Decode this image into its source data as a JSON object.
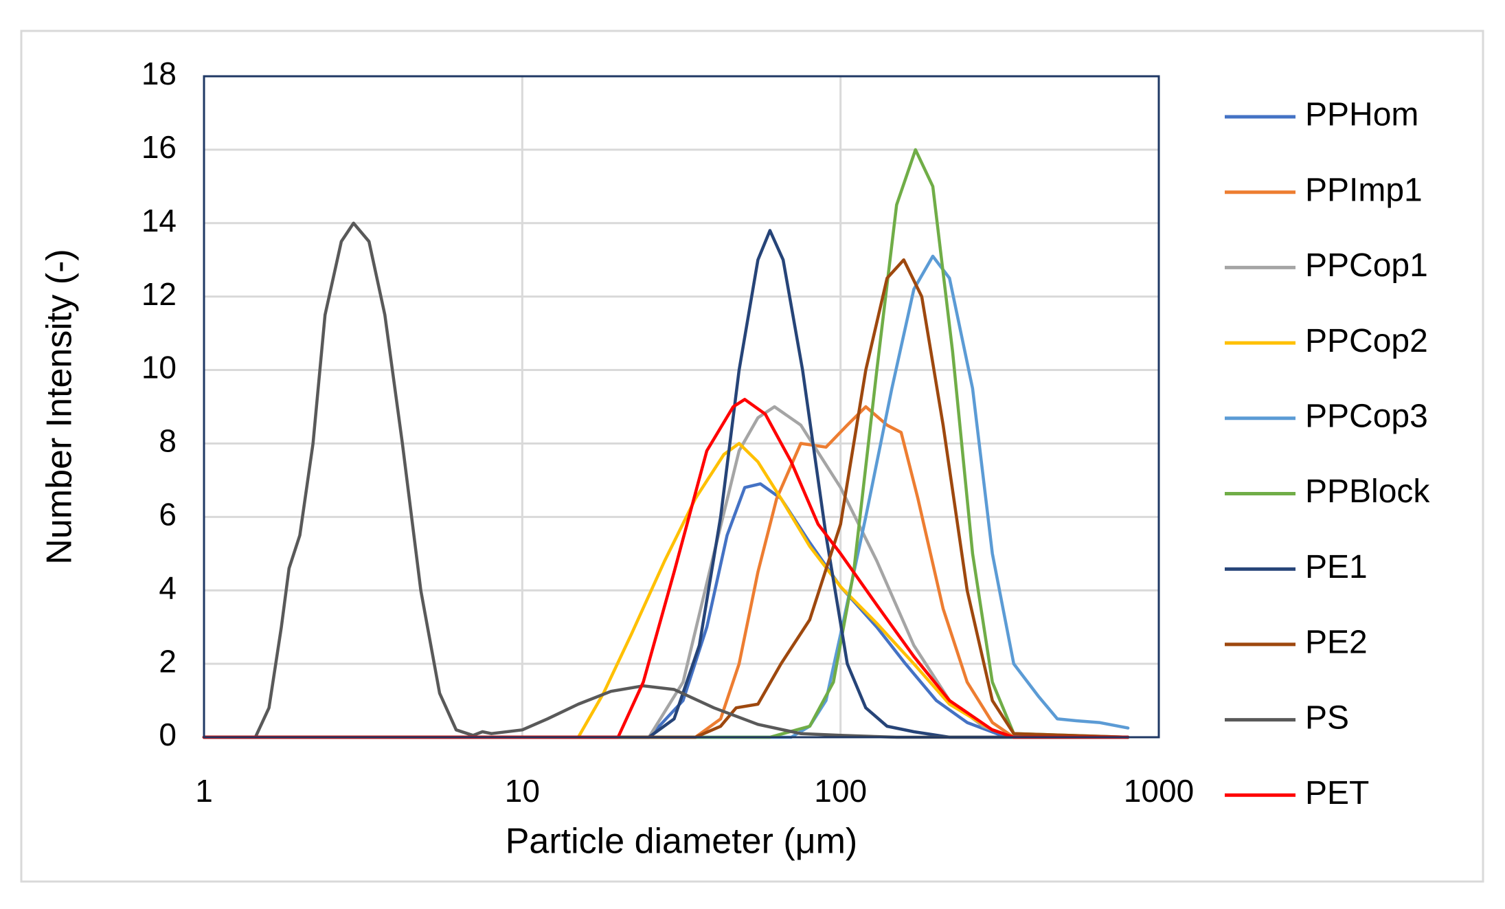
{
  "chart_data": {
    "type": "line",
    "x_label": "Particle diameter (μm)",
    "y_label": "Number Intensity (-)",
    "x_log": true,
    "xlim": [
      1,
      1000
    ],
    "xticks": [
      1,
      10,
      100,
      1000
    ],
    "ylim": [
      0,
      18
    ],
    "yticks": [
      0,
      2,
      4,
      6,
      8,
      10,
      12,
      14,
      16,
      18
    ],
    "grid": true,
    "legend": "right",
    "series": [
      {
        "name": "PPHom",
        "color": "#4472c4",
        "x": [
          1,
          25,
          32,
          38,
          44,
          50,
          56,
          65,
          80,
          100,
          130,
          160,
          200,
          250,
          320,
          400,
          800
        ],
        "values": [
          0,
          0,
          1,
          3,
          5.5,
          6.8,
          6.9,
          6.5,
          5.3,
          4.1,
          3,
          2,
          1,
          0.4,
          0.05,
          0,
          0
        ]
      },
      {
        "name": "PPImp1",
        "color": "#ed7d31",
        "x": [
          1,
          35,
          42,
          48,
          55,
          63,
          75,
          90,
          105,
          120,
          140,
          155,
          175,
          210,
          250,
          300,
          350,
          800
        ],
        "values": [
          0,
          0,
          0.5,
          2,
          4.5,
          6.5,
          8,
          7.9,
          8.5,
          9,
          8.5,
          8.3,
          6.5,
          3.5,
          1.5,
          0.4,
          0,
          0
        ]
      },
      {
        "name": "PPCop1",
        "color": "#a5a5a5",
        "x": [
          1,
          25,
          32,
          40,
          48,
          55,
          62,
          75,
          100,
          130,
          170,
          220,
          280,
          350,
          800
        ],
        "values": [
          0,
          0,
          1.5,
          5,
          7.8,
          8.7,
          9,
          8.5,
          6.8,
          4.8,
          2.5,
          1,
          0.3,
          0,
          0
        ]
      },
      {
        "name": "PPCop2",
        "color": "#ffc000",
        "x": [
          1,
          15,
          18,
          22,
          28,
          35,
          43,
          48,
          55,
          65,
          80,
          100,
          130,
          170,
          220,
          300,
          350,
          800
        ],
        "values": [
          0,
          0,
          1.2,
          2.8,
          4.8,
          6.5,
          7.7,
          8,
          7.5,
          6.5,
          5.2,
          4.1,
          3.1,
          2,
          0.9,
          0.2,
          0,
          0
        ]
      },
      {
        "name": "PPCop3",
        "color": "#5b9bd5",
        "x": [
          1,
          70,
          80,
          90,
          100,
          120,
          145,
          170,
          195,
          220,
          260,
          300,
          350,
          420,
          480,
          550,
          650,
          800
        ],
        "values": [
          0,
          0,
          0.3,
          1,
          2.8,
          6,
          9.5,
          12.2,
          13.1,
          12.5,
          9.5,
          5,
          2,
          1.1,
          0.5,
          0.45,
          0.4,
          0.25
        ]
      },
      {
        "name": "PPBlock",
        "color": "#70ad47",
        "x": [
          1,
          60,
          80,
          95,
          110,
          130,
          150,
          172,
          195,
          225,
          260,
          300,
          350,
          800
        ],
        "values": [
          0,
          0,
          0.3,
          1.5,
          4.5,
          10,
          14.5,
          16,
          15,
          10.5,
          5,
          1.5,
          0.1,
          0
        ]
      },
      {
        "name": "PE1",
        "color": "#264478",
        "x": [
          1,
          25,
          30,
          36,
          42,
          48,
          55,
          60,
          66,
          76,
          90,
          105,
          120,
          140,
          170,
          220,
          800
        ],
        "values": [
          0,
          0,
          0.5,
          2.5,
          6,
          10,
          13,
          13.8,
          13,
          10,
          5.5,
          2,
          0.8,
          0.3,
          0.15,
          0,
          0
        ]
      },
      {
        "name": "PE2",
        "color": "#9e480e",
        "x": [
          1,
          35,
          42,
          47,
          55,
          65,
          80,
          100,
          120,
          140,
          158,
          180,
          210,
          250,
          300,
          350,
          800
        ],
        "values": [
          0,
          0,
          0.3,
          0.8,
          0.9,
          2,
          3.2,
          5.8,
          10,
          12.5,
          13,
          12,
          8.5,
          4,
          1,
          0.1,
          0
        ]
      },
      {
        "name": "PS",
        "color": "#595959",
        "x": [
          1,
          1.45,
          1.6,
          1.75,
          1.85,
          2,
          2.2,
          2.4,
          2.7,
          2.95,
          3.3,
          3.7,
          4.2,
          4.8,
          5.5,
          6.2,
          7,
          7.5,
          8,
          10,
          12,
          15,
          19,
          24,
          30,
          40,
          55,
          75,
          100,
          150,
          800
        ],
        "values": [
          0,
          0,
          0.8,
          3,
          4.6,
          5.5,
          8,
          11.5,
          13.5,
          14,
          13.5,
          11.5,
          8,
          4,
          1.2,
          0.2,
          0.05,
          0.15,
          0.1,
          0.2,
          0.5,
          0.9,
          1.25,
          1.4,
          1.3,
          0.8,
          0.35,
          0.1,
          0.05,
          0,
          0
        ]
      },
      {
        "name": "PET",
        "color": "#ff0000",
        "x": [
          1,
          20,
          24,
          30,
          38,
          46,
          50,
          58,
          70,
          85,
          100,
          130,
          170,
          220,
          300,
          350,
          800
        ],
        "values": [
          0,
          0,
          1.5,
          4.5,
          7.8,
          9,
          9.2,
          8.8,
          7.5,
          5.8,
          5,
          3.6,
          2.2,
          1,
          0.2,
          0,
          0
        ]
      }
    ]
  }
}
